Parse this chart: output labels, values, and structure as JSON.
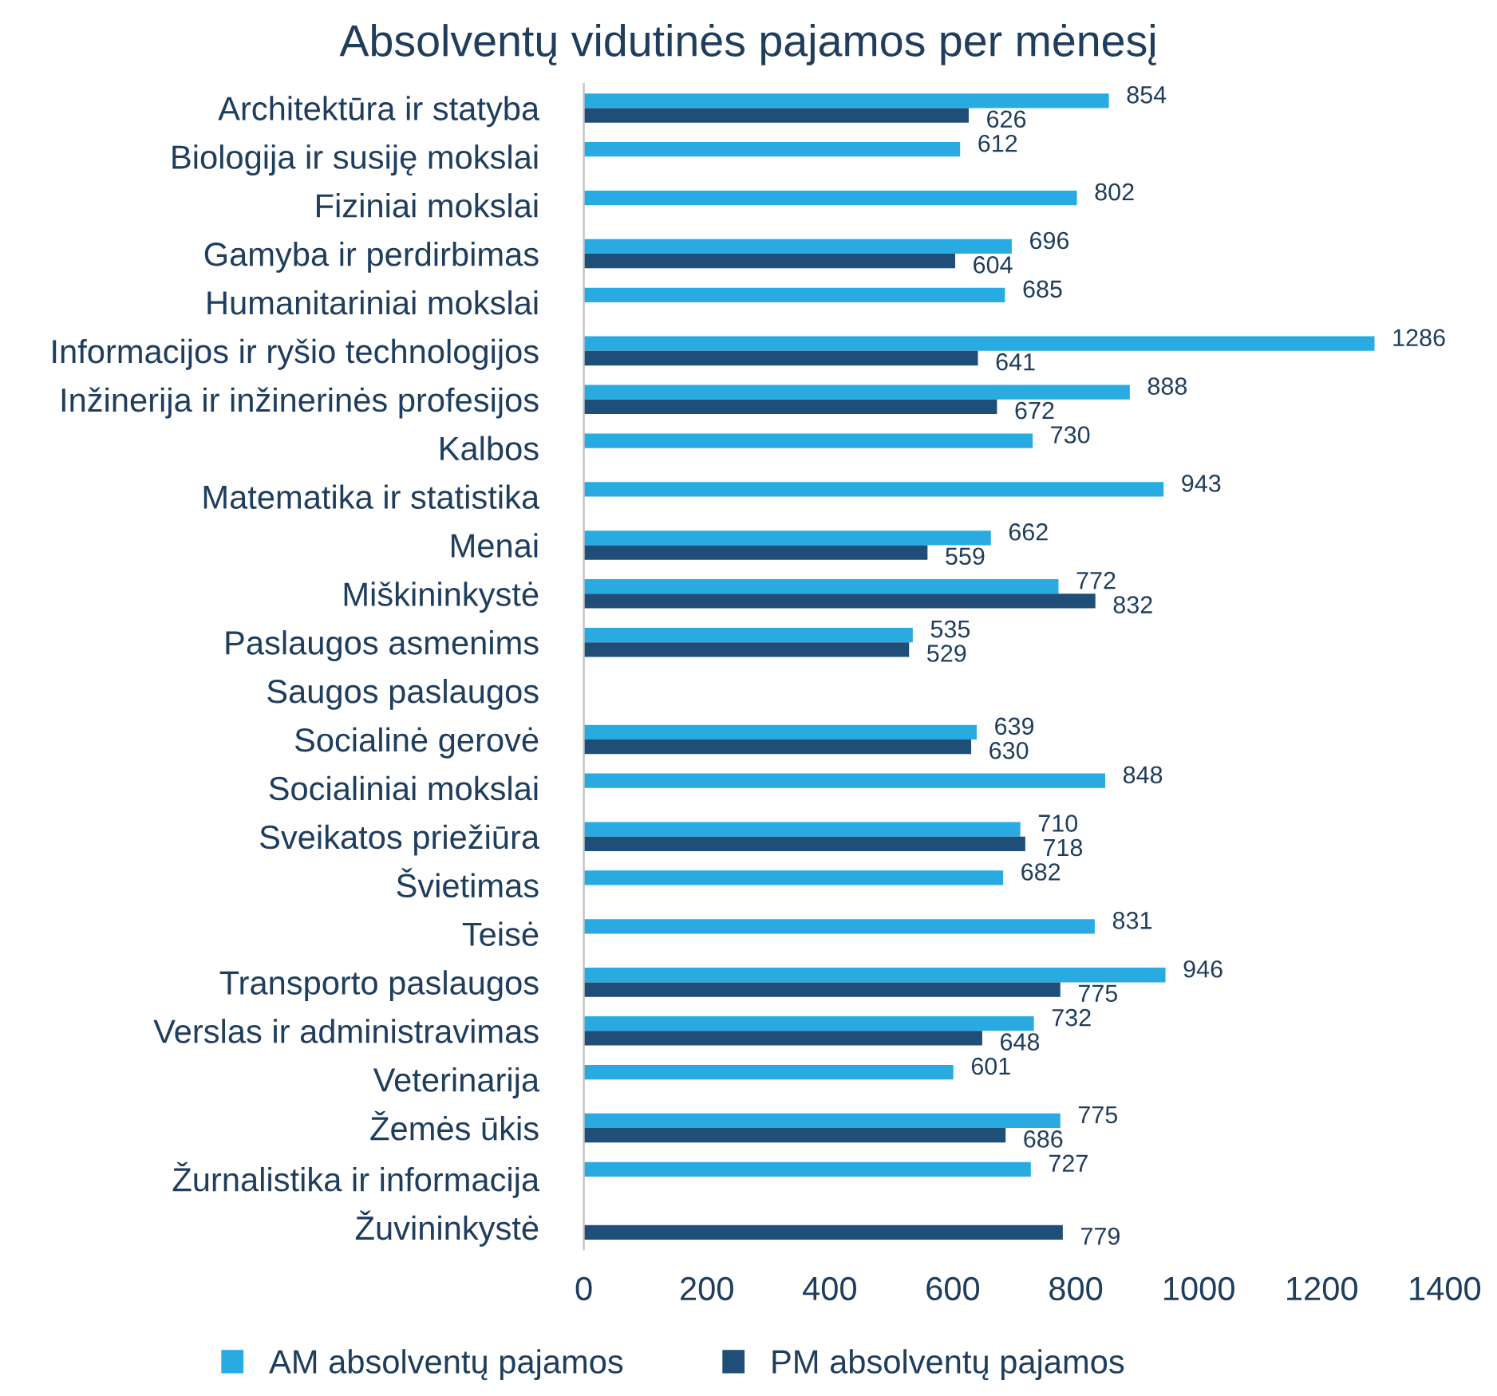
{
  "chart_data": {
    "type": "bar",
    "orientation": "horizontal",
    "title": "Absolventų vidutinės pajamos per mėnesį",
    "categories": [
      "Architektūra ir statyba",
      "Biologija ir susiję mokslai",
      "Fiziniai mokslai",
      "Gamyba ir perdirbimas",
      "Humanitariniai mokslai",
      "Informacijos ir ryšio technologijos",
      "Inžinerija ir inžinerinės profesijos",
      "Kalbos",
      "Matematika ir statistika",
      "Menai",
      "Miškininkystė",
      "Paslaugos asmenims",
      "Saugos paslaugos",
      "Socialinė gerovė",
      "Socialiniai mokslai",
      "Sveikatos priežiūra",
      "Švietimas",
      "Teisė",
      "Transporto paslaugos",
      "Verslas ir administravimas",
      "Veterinarija",
      "Žemės ūkis",
      "Žurnalistika ir informacija",
      "Žuvininkystė"
    ],
    "series": [
      {
        "name": "AM absolventų pajamos",
        "color": "#29abe2",
        "values": [
          854,
          612,
          802,
          696,
          685,
          1286,
          888,
          730,
          943,
          662,
          772,
          535,
          null,
          639,
          848,
          710,
          682,
          831,
          946,
          732,
          601,
          775,
          727,
          null
        ]
      },
      {
        "name": "PM absolventų pajamos",
        "color": "#1f4e79",
        "values": [
          626,
          null,
          null,
          604,
          null,
          641,
          672,
          null,
          null,
          559,
          832,
          529,
          null,
          630,
          null,
          718,
          null,
          null,
          775,
          648,
          null,
          686,
          null,
          779
        ]
      }
    ],
    "xlim": [
      0,
      1400
    ],
    "xticks": [
      0,
      200,
      400,
      600,
      800,
      1000,
      1200,
      1400
    ],
    "data_labels": true,
    "grid": false,
    "legend": "bottom"
  }
}
